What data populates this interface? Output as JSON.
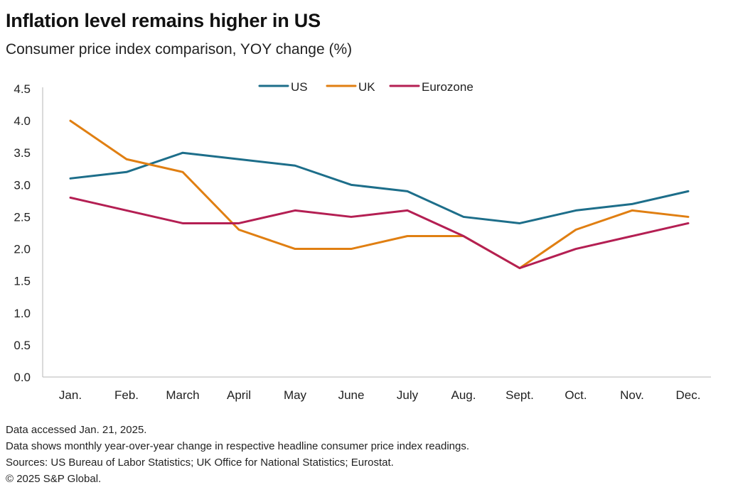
{
  "header": {
    "title": "Inflation level remains higher in US",
    "subtitle": "Consumer price index comparison, YOY change (%)"
  },
  "chart_data": {
    "type": "line",
    "categories": [
      "Jan.",
      "Feb.",
      "March",
      "April",
      "May",
      "June",
      "July",
      "Aug.",
      "Sept.",
      "Oct.",
      "Nov.",
      "Dec."
    ],
    "series": [
      {
        "name": "US",
        "color": "#1d6e8a",
        "values": [
          3.1,
          3.2,
          3.5,
          3.4,
          3.3,
          3.0,
          2.9,
          2.5,
          2.4,
          2.6,
          2.7,
          2.9
        ]
      },
      {
        "name": "UK",
        "color": "#e07f12",
        "values": [
          4.0,
          3.4,
          3.2,
          2.3,
          2.0,
          2.0,
          2.2,
          2.2,
          1.7,
          2.3,
          2.6,
          2.5
        ]
      },
      {
        "name": "Eurozone",
        "color": "#b41f53",
        "values": [
          2.8,
          2.6,
          2.4,
          2.4,
          2.6,
          2.5,
          2.6,
          2.2,
          1.7,
          2.0,
          2.2,
          2.4
        ]
      }
    ],
    "ylim": [
      0.0,
      4.5
    ],
    "yticks": [
      "0.0",
      "0.5",
      "1.0",
      "1.5",
      "2.0",
      "2.5",
      "3.0",
      "3.5",
      "4.0",
      "4.5"
    ],
    "grid": false,
    "legend_position": "top-center"
  },
  "notes": {
    "accessed": "Data accessed Jan. 21, 2025.",
    "description": "Data shows monthly year-over-year change in respective headline consumer price index readings.",
    "sources": "Sources: US Bureau of Labor Statistics; UK Office for National Statistics; Eurostat.",
    "copyright": "© 2025 S&P Global."
  }
}
